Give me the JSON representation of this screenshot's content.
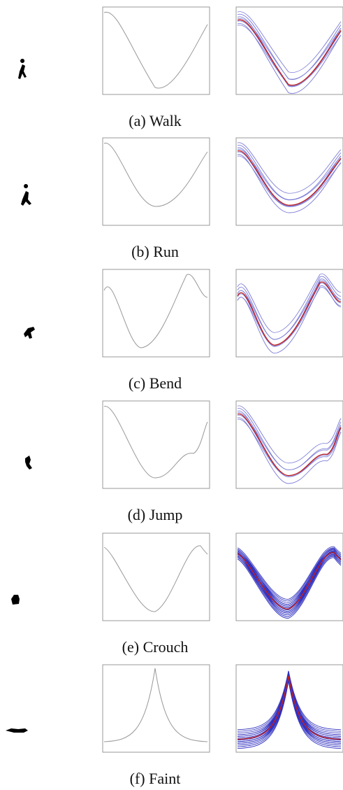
{
  "figure": {
    "panels": [
      {
        "caption": "(a) Walk"
      },
      {
        "caption": "(b) Run"
      },
      {
        "caption": "(c) Bend"
      },
      {
        "caption": "(d) Jump"
      },
      {
        "caption": "(e) Crouch"
      },
      {
        "caption": "(f) Faint"
      }
    ]
  }
}
